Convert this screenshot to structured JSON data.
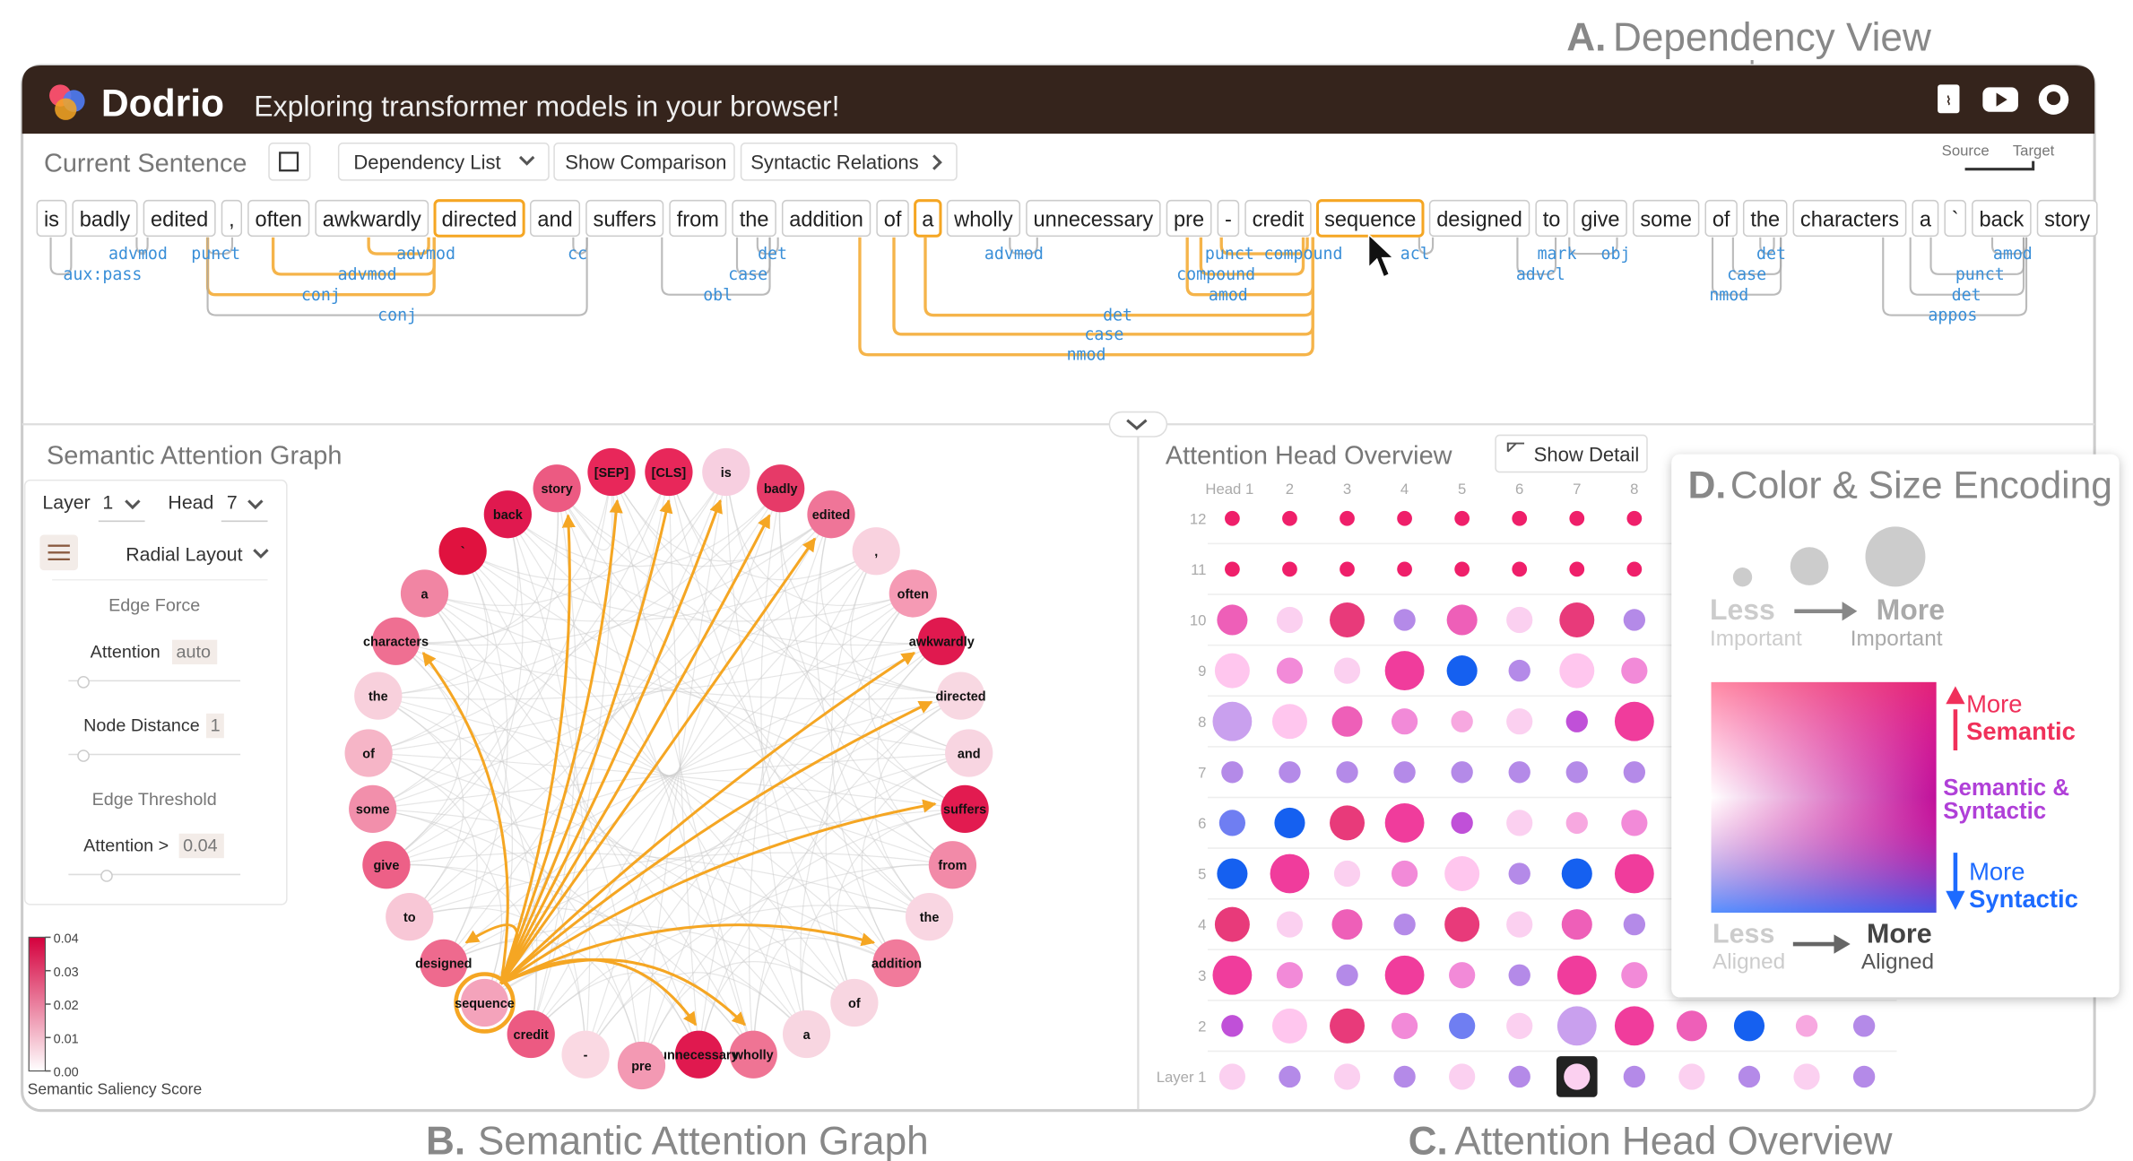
{
  "figure_labels": [
    {
      "letter": "A.",
      "text": "Dependency View"
    },
    {
      "letter": "B.",
      "text": "Semantic Attention Graph"
    },
    {
      "letter": "C.",
      "text": "Attention Head Overview"
    },
    {
      "letter": "D.",
      "text": "Color & Size Encoding"
    }
  ],
  "header": {
    "app": "Dodrio",
    "tagline": "Exploring transformer models in your browser!"
  },
  "toolbar": {
    "current_sentence": "Current Sentence",
    "dependency_list": "Dependency List",
    "show_comparison": "Show Comparison",
    "syntactic_relations": "Syntactic Relations",
    "source": "Source",
    "target": "Target"
  },
  "tokens": [
    "is",
    "badly",
    "edited",
    ",",
    "often",
    "awkwardly",
    "directed",
    "and",
    "suffers",
    "from",
    "the",
    "addition",
    "of",
    "a",
    "wholly",
    "unnecessary",
    "pre",
    "-",
    "credit",
    "sequence",
    "designed",
    "to",
    "give",
    "some",
    "of",
    "the",
    "characters",
    "a",
    "`",
    "back",
    "story"
  ],
  "dependency_labels": [
    "aux:pass",
    "advmod",
    "punct",
    "advmod",
    "advmod",
    "conj",
    "conj",
    "cc",
    "det",
    "case",
    "obl",
    "advmod",
    "det",
    "case",
    "nmod",
    "punct",
    "compound",
    "compound",
    "amod",
    "acl",
    "mark",
    "advcl",
    "obj",
    "det",
    "case",
    "nmod",
    "amod",
    "punct",
    "det",
    "appos"
  ],
  "graph": {
    "title": "Semantic Attention Graph",
    "layer_label": "Layer",
    "layer": "1",
    "head_label": "Head",
    "head": "7",
    "layout": "Radial Layout",
    "edge_force": "Edge Force",
    "attention": "Attention",
    "attention_value": "auto",
    "node_distance": "Node Distance",
    "node_distance_value": "1",
    "edge_threshold": "Edge Threshold",
    "threshold_label": "Attention >",
    "threshold_value": "0.04",
    "legend_ticks": [
      "0.04",
      "0.03",
      "0.02",
      "0.01",
      "0.00"
    ],
    "legend_title": "Semantic Saliency Score",
    "nodes": [
      "[SEP]",
      "[CLS]",
      "is",
      "badly",
      "edited",
      ",",
      "often",
      "awkwardly",
      "directed",
      "and",
      "suffers",
      "from",
      "the",
      "addition",
      "of",
      "a",
      "wholly",
      "unnecessary",
      "pre",
      "-",
      "credit",
      "sequence",
      "designed",
      "to",
      "give",
      "some",
      "of",
      "the",
      "characters",
      "a",
      "`",
      "back",
      "story"
    ]
  },
  "overview": {
    "title": "Attention Head Overview",
    "show_detail": "Show Detail",
    "head_labels": [
      "Head 1",
      "2",
      "3",
      "4",
      "5",
      "6",
      "7",
      "8"
    ],
    "layer_labels": [
      "12",
      "11",
      "10",
      "9",
      "8",
      "7",
      "6",
      "5",
      "4",
      "3",
      "2",
      "Layer 1"
    ]
  },
  "encoding": {
    "less": "Less",
    "important": "Important",
    "more": "More",
    "semantic": "Semantic",
    "semantic_and": "Semantic &",
    "syntactic": "Syntactic",
    "aligned": "Aligned"
  }
}
